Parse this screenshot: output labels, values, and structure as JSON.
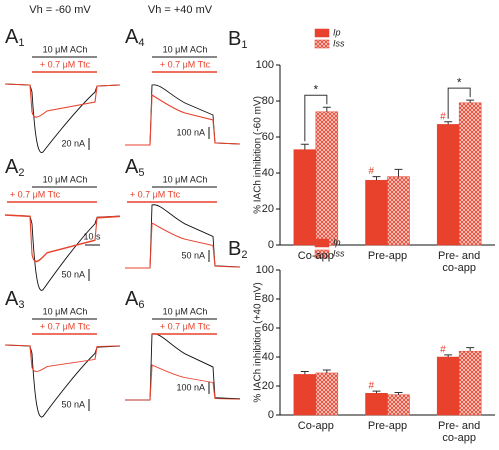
{
  "traces": {
    "holding": [
      "Vh = -60 mV",
      "Vh = +40 mV"
    ],
    "time_scale": "10 s",
    "panels": [
      {
        "letter": "A",
        "sub": "1",
        "ach": "10 μM ACh",
        "ttc": "+ 0.7 μM Ttc",
        "scale": "20 nA"
      },
      {
        "letter": "A",
        "sub": "2",
        "ach": "10 μM ACh",
        "ttc": "+ 0.7 μM Ttc",
        "scale": "50 nA"
      },
      {
        "letter": "A",
        "sub": "3",
        "ach": "10 μM ACh",
        "ttc": "+ 0.7 μM Ttc",
        "scale": "50 nA"
      },
      {
        "letter": "A",
        "sub": "4",
        "ach": "10 μM ACh",
        "ttc": "+ 0.7 μM Ttc",
        "scale": "100 nA"
      },
      {
        "letter": "A",
        "sub": "5",
        "ach": "10 μM ACh",
        "ttc": "+ 0.7 μM Ttc",
        "scale": "50 nA"
      },
      {
        "letter": "A",
        "sub": "6",
        "ach": "10 μM ACh",
        "ttc": "+ 0.7 μM Ttc",
        "scale": "100 nA"
      }
    ]
  },
  "chart_data": [
    {
      "type": "bar",
      "letter": "B",
      "sub": "1",
      "ylabel": "% IACh inhibition (-60 mV)",
      "categories": [
        "Co-app",
        "Pre-app",
        "Pre- and co-app"
      ],
      "series": [
        {
          "name": "Ip",
          "color": "#e8412c",
          "values": [
            53,
            36,
            67
          ],
          "errors": [
            3,
            2,
            1.5
          ]
        },
        {
          "name": "Iss",
          "color": "#e8412c",
          "pattern": "hatch",
          "values": [
            74,
            38,
            79
          ],
          "errors": [
            2.5,
            4,
            1.5
          ]
        }
      ],
      "ylim": [
        0,
        100
      ],
      "yticks": [
        0,
        20,
        40,
        60,
        80,
        100
      ],
      "significance": "*",
      "versus_coapp": "#"
    },
    {
      "type": "bar",
      "letter": "B",
      "sub": "2",
      "ylabel": "% IACh inhibition (+40 mV)",
      "categories": [
        "Co-app",
        "Pre-app",
        "Pre- and co-app"
      ],
      "series": [
        {
          "name": "Ip",
          "color": "#e8412c",
          "values": [
            28,
            15,
            40
          ],
          "errors": [
            2,
            1.5,
            1.5
          ]
        },
        {
          "name": "Iss",
          "color": "#e8412c",
          "pattern": "hatch",
          "values": [
            29,
            14,
            44
          ],
          "errors": [
            2,
            1.5,
            2.5
          ]
        }
      ],
      "ylim": [
        0,
        100
      ],
      "yticks": [
        0,
        20,
        40,
        60,
        80,
        100
      ],
      "versus_coapp": "#"
    }
  ]
}
